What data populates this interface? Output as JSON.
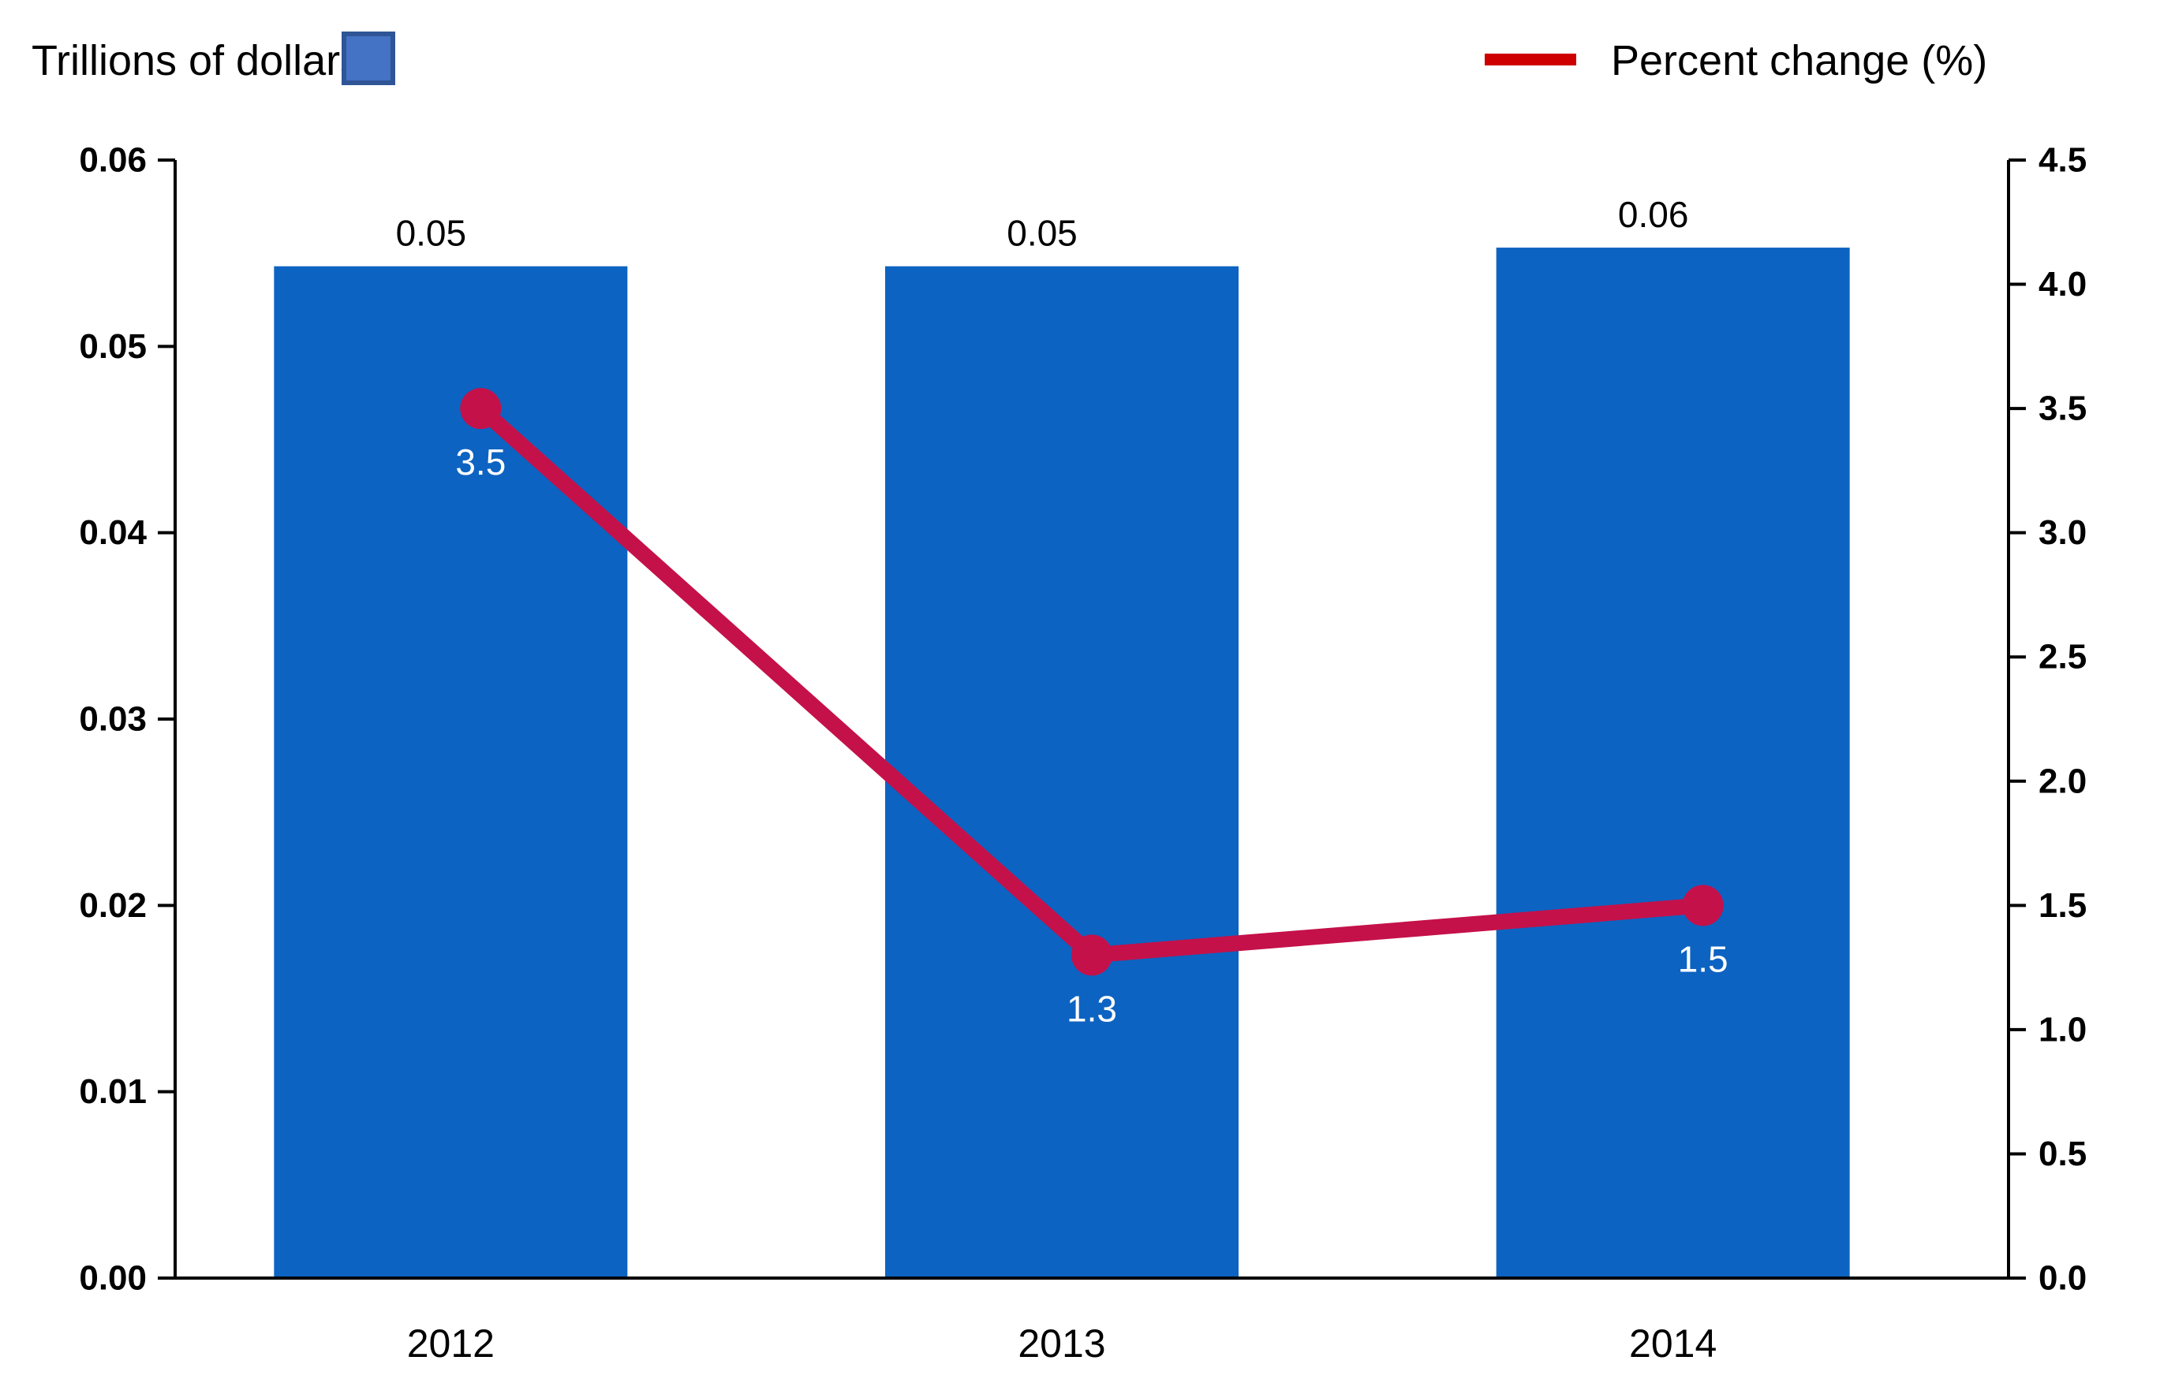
{
  "legend": {
    "bars": {
      "label": "Trillions of dollars"
    },
    "line": {
      "label": "Percent change (%)"
    }
  },
  "chart_data": {
    "type": "combo",
    "categories": [
      "2012",
      "2013",
      "2014"
    ],
    "series": [
      {
        "name": "Trillions of dollars",
        "type": "bar",
        "axis": "left",
        "values": [
          0.05,
          0.05,
          0.06
        ],
        "data_labels": [
          "0.05",
          "0.05",
          "0.06"
        ],
        "plotted_values": [
          0.0543,
          0.0543,
          0.0553
        ],
        "color": "#0d63c1"
      },
      {
        "name": "Percent change (%)",
        "type": "line",
        "axis": "right",
        "values": [
          3.5,
          1.3,
          1.5
        ],
        "data_labels": [
          "3.5",
          "1.3",
          "1.5"
        ],
        "color": "#c4114a"
      }
    ],
    "axes": {
      "left": {
        "min": 0,
        "max": 0.06,
        "step": 0.01,
        "tick_labels": [
          "0.00",
          "0.01",
          "0.02",
          "0.03",
          "0.04",
          "0.05",
          "0.06"
        ]
      },
      "right": {
        "min": 0,
        "max": 4.5,
        "step": 0.5,
        "tick_labels": [
          "0.0",
          "0.5",
          "1.0",
          "1.5",
          "2.0",
          "2.5",
          "3.0",
          "3.5",
          "4.0",
          "4.5"
        ]
      }
    },
    "grid": false,
    "legend_position": "top",
    "colors": {
      "bar": "#0d63c1",
      "line": "#c4114a",
      "legend_swatch_fill": "#4472c4",
      "legend_swatch_border": "#2f5597",
      "legend_dash": "#ce0000",
      "text": "#000000",
      "line_data_label": "#ffffff"
    }
  }
}
